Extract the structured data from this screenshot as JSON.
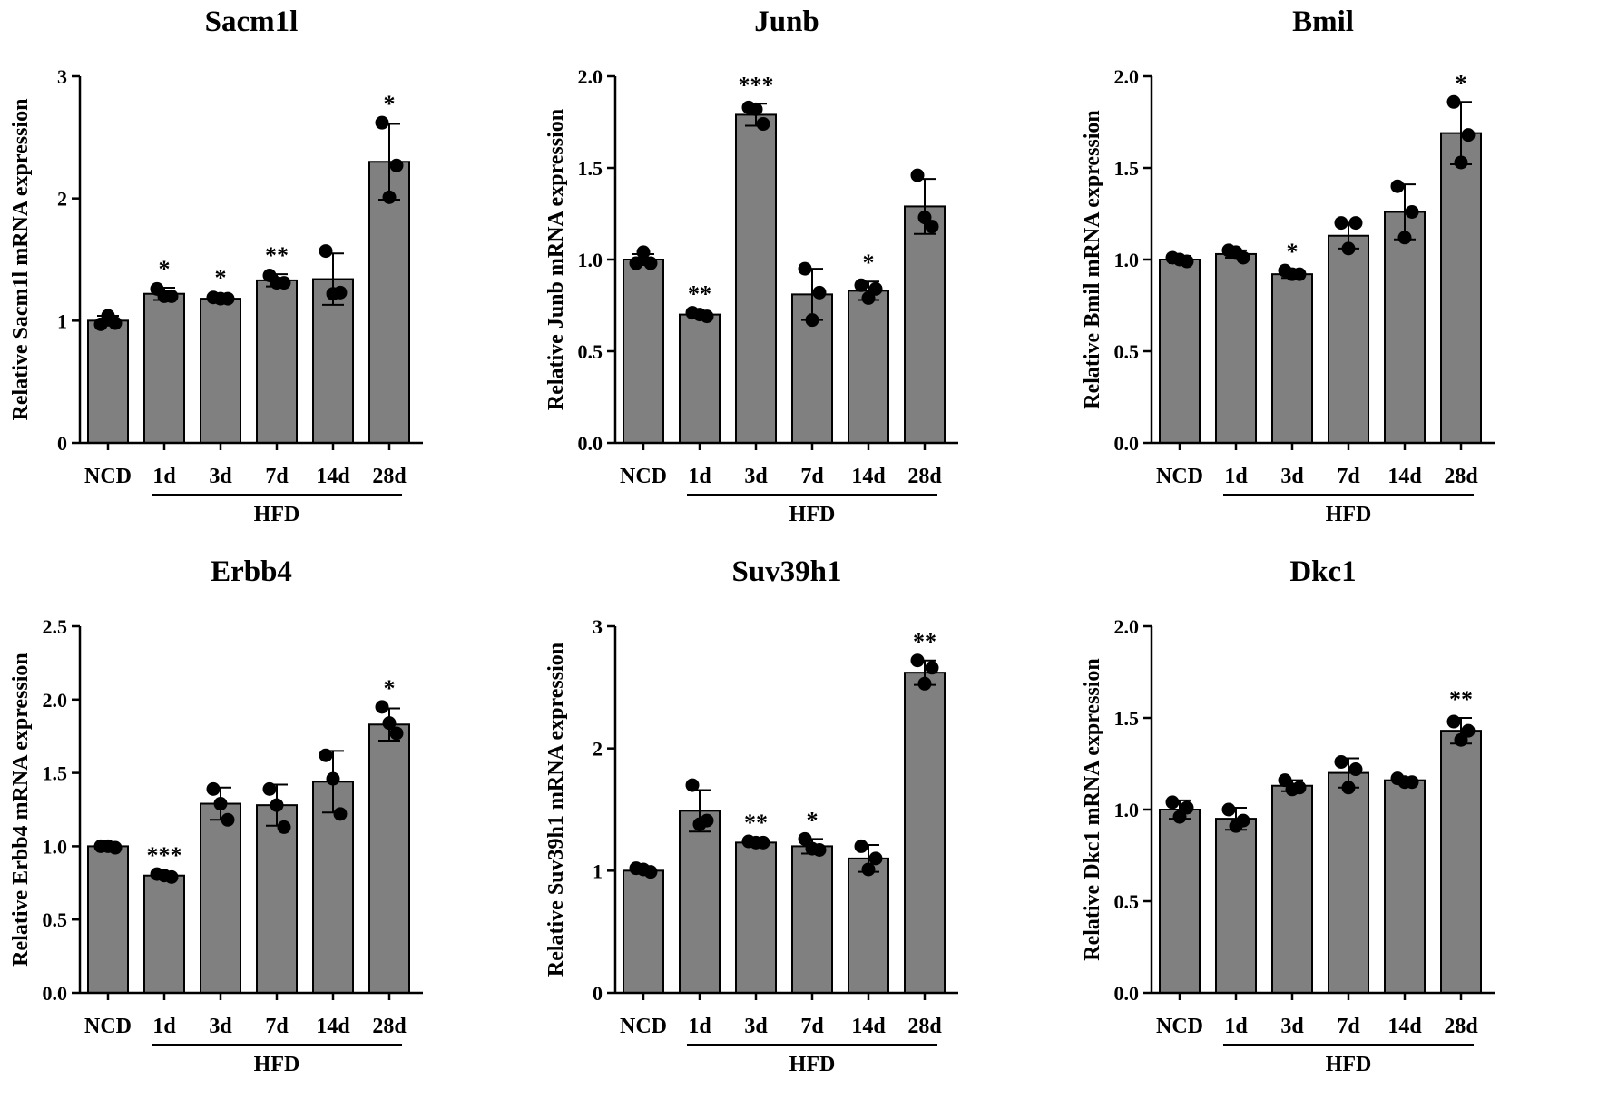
{
  "chart_data": [
    {
      "type": "bar",
      "title": "Sacm1l",
      "xlabel": "",
      "ylabel": "Relative Sacm1l  mRNA expression",
      "ylim": [
        0,
        3
      ],
      "yticks": [
        0,
        1,
        2,
        3
      ],
      "ytick_labels": [
        "0",
        "1",
        "2",
        "3"
      ],
      "categories": [
        "NCD",
        "1d",
        "3d",
        "7d",
        "14d",
        "28d"
      ],
      "group_label": "HFD",
      "group_span": [
        "1d",
        "28d"
      ],
      "bar_color": "#808080",
      "values": [
        1.0,
        1.22,
        1.18,
        1.33,
        1.34,
        2.3
      ],
      "error": [
        0.04,
        0.05,
        0.02,
        0.05,
        0.21,
        0.31
      ],
      "points": [
        [
          0.97,
          1.04,
          0.98
        ],
        [
          1.26,
          1.2,
          1.2
        ],
        [
          1.19,
          1.18,
          1.18
        ],
        [
          1.37,
          1.31,
          1.31
        ],
        [
          1.57,
          1.22,
          1.23
        ],
        [
          2.62,
          2.01,
          2.27
        ]
      ],
      "significance": [
        "",
        "*",
        "*",
        "**",
        "",
        "*"
      ]
    },
    {
      "type": "bar",
      "title": "Junb",
      "xlabel": "",
      "ylabel": "Relative Junb  mRNA expression",
      "ylim": [
        0,
        2
      ],
      "yticks": [
        0,
        0.5,
        1.0,
        1.5,
        2.0
      ],
      "ytick_labels": [
        "0.0",
        "0.5",
        "1.0",
        "1.5",
        "2.0"
      ],
      "categories": [
        "NCD",
        "1d",
        "3d",
        "7d",
        "14d",
        "28d"
      ],
      "group_label": "HFD",
      "group_span": [
        "1d",
        "28d"
      ],
      "bar_color": "#808080",
      "values": [
        1.0,
        0.7,
        1.79,
        0.81,
        0.83,
        1.29
      ],
      "error": [
        0.03,
        0.01,
        0.06,
        0.14,
        0.05,
        0.15
      ],
      "points": [
        [
          0.98,
          1.04,
          0.98
        ],
        [
          0.71,
          0.7,
          0.69
        ],
        [
          1.83,
          1.82,
          1.74
        ],
        [
          0.95,
          0.67,
          0.82
        ],
        [
          0.86,
          0.79,
          0.84
        ],
        [
          1.46,
          1.23,
          1.18
        ]
      ],
      "significance": [
        "",
        "**",
        "***",
        "",
        "*",
        ""
      ]
    },
    {
      "type": "bar",
      "title": "Bmil",
      "xlabel": "",
      "ylabel": "Relative Bmil  mRNA expression",
      "ylim": [
        0,
        2
      ],
      "yticks": [
        0,
        0.5,
        1.0,
        1.5,
        2.0
      ],
      "ytick_labels": [
        "0.0",
        "0.5",
        "1.0",
        "1.5",
        "2.0"
      ],
      "categories": [
        "NCD",
        "1d",
        "3d",
        "7d",
        "14d",
        "28d"
      ],
      "group_label": "HFD",
      "group_span": [
        "1d",
        "28d"
      ],
      "bar_color": "#808080",
      "values": [
        1.0,
        1.03,
        0.92,
        1.13,
        1.26,
        1.69
      ],
      "error": [
        0.02,
        0.02,
        0.02,
        0.07,
        0.15,
        0.17
      ],
      "points": [
        [
          1.01,
          1.0,
          0.99
        ],
        [
          1.05,
          1.04,
          1.01
        ],
        [
          0.94,
          0.92,
          0.92
        ],
        [
          1.2,
          1.06,
          1.2
        ],
        [
          1.4,
          1.12,
          1.26
        ],
        [
          1.86,
          1.53,
          1.68
        ]
      ],
      "significance": [
        "",
        "",
        "*",
        "",
        "",
        "*"
      ]
    },
    {
      "type": "bar",
      "title": "Erbb4",
      "xlabel": "",
      "ylabel": "Relative Erbb4  mRNA expression",
      "ylim": [
        0,
        2.5
      ],
      "yticks": [
        0,
        0.5,
        1.0,
        1.5,
        2.0,
        2.5
      ],
      "ytick_labels": [
        "0.0",
        "0.5",
        "1.0",
        "1.5",
        "2.0",
        "2.5"
      ],
      "categories": [
        "NCD",
        "1d",
        "3d",
        "7d",
        "14d",
        "28d"
      ],
      "group_label": "HFD",
      "group_span": [
        "1d",
        "28d"
      ],
      "bar_color": "#808080",
      "values": [
        1.0,
        0.8,
        1.29,
        1.28,
        1.44,
        1.83
      ],
      "error": [
        0.01,
        0.01,
        0.11,
        0.14,
        0.21,
        0.11
      ],
      "points": [
        [
          1.0,
          1.0,
          0.99
        ],
        [
          0.81,
          0.8,
          0.79
        ],
        [
          1.39,
          1.29,
          1.18
        ],
        [
          1.39,
          1.28,
          1.13
        ],
        [
          1.62,
          1.46,
          1.22
        ],
        [
          1.95,
          1.84,
          1.77
        ]
      ],
      "significance": [
        "",
        "***",
        "",
        "",
        "",
        "*"
      ]
    },
    {
      "type": "bar",
      "title": "Suv39h1",
      "xlabel": "",
      "ylabel": "Relative Suv39h1  mRNA expression",
      "ylim": [
        0,
        3
      ],
      "yticks": [
        0,
        1,
        2,
        3
      ],
      "ytick_labels": [
        "0",
        "1",
        "2",
        "3"
      ],
      "categories": [
        "NCD",
        "1d",
        "3d",
        "7d",
        "14d",
        "28d"
      ],
      "group_label": "HFD",
      "group_span": [
        "1d",
        "28d"
      ],
      "bar_color": "#808080",
      "values": [
        1.0,
        1.49,
        1.23,
        1.2,
        1.1,
        2.62
      ],
      "error": [
        0.02,
        0.17,
        0.01,
        0.06,
        0.11,
        0.1
      ],
      "points": [
        [
          1.02,
          1.01,
          0.99
        ],
        [
          1.7,
          1.38,
          1.41
        ],
        [
          1.24,
          1.23,
          1.23
        ],
        [
          1.26,
          1.18,
          1.17
        ],
        [
          1.2,
          1.01,
          1.1
        ],
        [
          2.72,
          2.53,
          2.66
        ]
      ],
      "significance": [
        "",
        "",
        "**",
        "*",
        "",
        "**"
      ]
    },
    {
      "type": "bar",
      "title": "Dkc1",
      "xlabel": "",
      "ylabel": "Relative Dkc1  mRNA expression",
      "ylim": [
        0,
        2
      ],
      "yticks": [
        0,
        0.5,
        1.0,
        1.5,
        2.0
      ],
      "ytick_labels": [
        "0.0",
        "0.5",
        "1.0",
        "1.5",
        "2.0"
      ],
      "categories": [
        "NCD",
        "1d",
        "3d",
        "7d",
        "14d",
        "28d"
      ],
      "group_label": "HFD",
      "group_span": [
        "1d",
        "28d"
      ],
      "bar_color": "#808080",
      "values": [
        1.0,
        0.95,
        1.13,
        1.2,
        1.16,
        1.43
      ],
      "error": [
        0.05,
        0.06,
        0.03,
        0.08,
        0.01,
        0.07
      ],
      "points": [
        [
          1.04,
          0.96,
          1.01
        ],
        [
          1.0,
          0.91,
          0.94
        ],
        [
          1.16,
          1.11,
          1.12
        ],
        [
          1.26,
          1.12,
          1.22
        ],
        [
          1.17,
          1.15,
          1.15
        ],
        [
          1.48,
          1.38,
          1.43
        ]
      ],
      "significance": [
        "",
        "",
        "",
        "",
        "",
        "**"
      ]
    }
  ]
}
